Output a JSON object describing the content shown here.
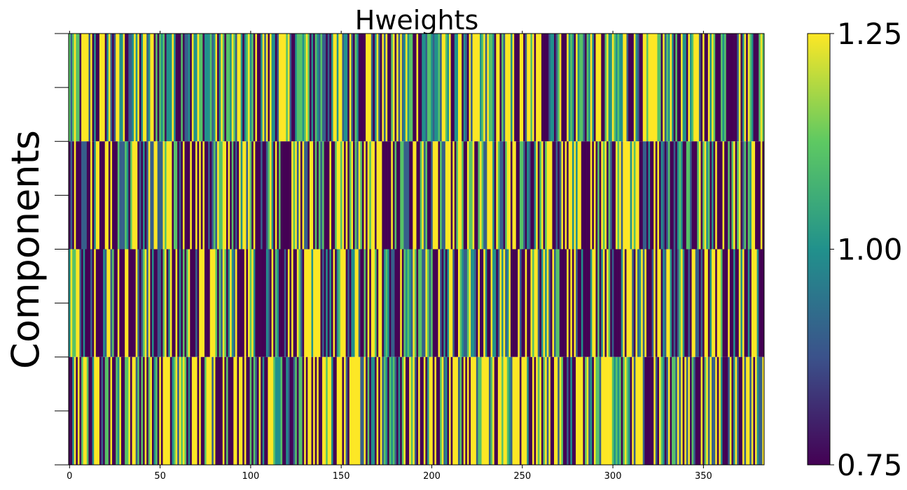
{
  "chart_data": {
    "type": "heatmap",
    "title": "Hweights",
    "xlabel": "",
    "ylabel": "Components",
    "n_rows": 4,
    "n_cols": 384,
    "xlim": [
      -0.5,
      383.5
    ],
    "x_ticks": [
      0,
      50,
      100,
      150,
      200,
      250,
      300,
      350
    ],
    "x_tick_labels": [
      "0",
      "50",
      "100",
      "150",
      "200",
      "250",
      "300",
      "350"
    ],
    "y_tick_count": 9,
    "y_tick_labels_shown": false,
    "colormap": "viridis",
    "color_range": [
      0.75,
      1.25
    ],
    "colorbar_ticks": [
      0.75,
      1.0,
      1.25
    ],
    "colorbar_tick_labels": [
      "0.75",
      "1.00",
      "1.25"
    ],
    "colormap_stops": [
      "#440154",
      "#3b528b",
      "#21918c",
      "#5ec962",
      "#fde725"
    ],
    "value_note": "Per-cell values are too dense to read individually; cells alternate near-randomly between ~0.75 and ~1.25 across all 4 rows.",
    "row_value_weights": [
      {
        "row": 0,
        "dark": 0.28,
        "blue": 0.1,
        "teal": 0.2,
        "green": 0.12,
        "yellow": 0.3
      },
      {
        "row": 1,
        "dark": 0.38,
        "blue": 0.12,
        "teal": 0.05,
        "green": 0.17,
        "yellow": 0.28
      },
      {
        "row": 2,
        "dark": 0.4,
        "blue": 0.12,
        "teal": 0.1,
        "green": 0.08,
        "yellow": 0.3
      },
      {
        "row": 3,
        "dark": 0.3,
        "blue": 0.1,
        "teal": 0.08,
        "green": 0.17,
        "yellow": 0.35
      }
    ]
  }
}
